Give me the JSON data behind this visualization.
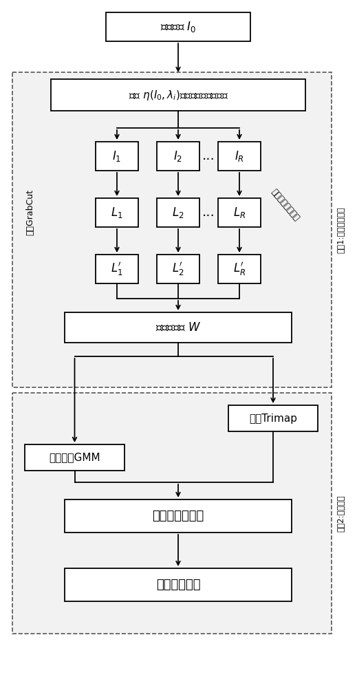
{
  "bg_color": "#ffffff",
  "box_bg": "#ffffff",
  "box_edge": "#000000",
  "phase1_label": "阶段1:构建重构图像",
  "phase2_label": "阶段2:精准分割",
  "grabcut_label": "应用GrabCut",
  "deform_label": "密集变形分割结果",
  "box0_text": "输入图像 $I_0$",
  "box1_text": "使用 $\\eta(I_0,\\lambda_i)$对输入图像进行变形",
  "boxI1_text": "$I_1$",
  "boxI2_text": "$I_2$",
  "boxIR_text": "$I_R$",
  "boxL1_text": "$L_1$",
  "boxL2_text": "$L_2$",
  "boxLR_text": "$L_R$",
  "boxLp1_text": "$L_1^{\\prime}$",
  "boxLp2_text": "$L_2^{\\prime}$",
  "boxLpR_text": "$L_R^{\\prime}$",
  "boxW_text": "计算权重图 $W$",
  "boxTrimap_text": "矫正Trimap",
  "boxGMM_text": "训练带权GMM",
  "boxModel_text": "构建精简图模型",
  "boxResult_text": "最终分割结果",
  "ellipsis": "···"
}
